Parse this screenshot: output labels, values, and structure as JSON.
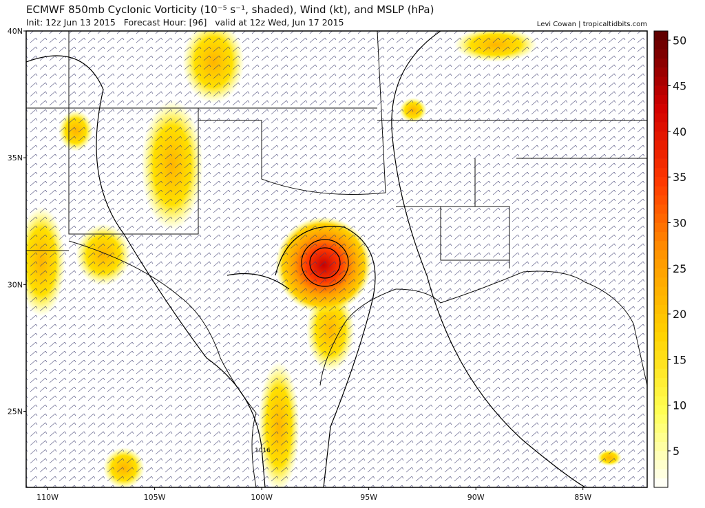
{
  "header": {
    "title": "ECMWF 850mb Cyclonic Vorticity (10⁻⁵ s⁻¹, shaded), Wind (kt), and MSLP (hPa)",
    "subtitle": "Init: 12z Jun 13 2015   Forecast Hour: [96]   valid at 12z Wed, Jun 17 2015",
    "credit": "Levi Cowan | tropicaltidbits.com"
  },
  "map": {
    "lonlim": [
      -111,
      -82
    ],
    "latlim": [
      22,
      40
    ],
    "lonticks": [
      {
        "value": -110,
        "label": "110W"
      },
      {
        "value": -105,
        "label": "105W"
      },
      {
        "value": -100,
        "label": "100W"
      },
      {
        "value": -95,
        "label": "95W"
      },
      {
        "value": -90,
        "label": "90W"
      },
      {
        "value": -85,
        "label": "85W"
      }
    ],
    "latticks": [
      {
        "value": 40,
        "label": "40N"
      },
      {
        "value": 35,
        "label": "35N"
      },
      {
        "value": 30,
        "label": "30N"
      },
      {
        "value": 25,
        "label": "25N"
      }
    ],
    "contour_label": "1016"
  },
  "colorbar": {
    "range": [
      1,
      51
    ],
    "ticks": [
      5,
      10,
      15,
      20,
      25,
      30,
      35,
      40,
      45,
      50
    ],
    "colors": [
      "#ffffff",
      "#ffff55",
      "#ffd200",
      "#ff9a00",
      "#ff3a00",
      "#d20000",
      "#5a0000"
    ]
  }
}
